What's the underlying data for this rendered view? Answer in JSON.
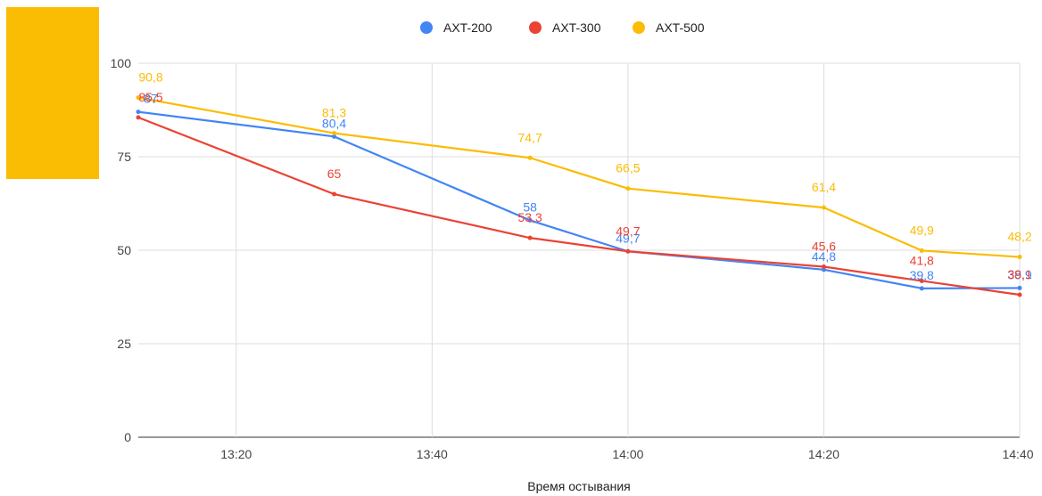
{
  "chart_data": {
    "type": "line",
    "title": "",
    "xlabel": "Время остывания",
    "ylabel": "",
    "ylim": [
      0,
      100
    ],
    "yticks": [
      "0",
      "25",
      "50",
      "75",
      "100"
    ],
    "xticks": [
      "13:20",
      "13:40",
      "14:00",
      "14:20",
      "14:40"
    ],
    "x": [
      "13:10",
      "13:30",
      "13:50",
      "14:00",
      "14:20",
      "14:30",
      "14:40"
    ],
    "series": [
      {
        "name": "AXT-200",
        "color": "#4285F4",
        "values": [
          87,
          80.4,
          58,
          49.7,
          44.8,
          39.8,
          39.9
        ]
      },
      {
        "name": "AXT-300",
        "color": "#EA4335",
        "values": [
          85.5,
          65,
          53.3,
          49.7,
          45.6,
          41.8,
          38.1
        ]
      },
      {
        "name": "AXT-500",
        "color": "#FBBC04",
        "values": [
          90.8,
          81.3,
          74.7,
          66.5,
          61.4,
          49.9,
          48.2
        ]
      }
    ],
    "legend_position": "top",
    "grid": true
  },
  "decoration": {
    "color": "#FBBC04"
  }
}
